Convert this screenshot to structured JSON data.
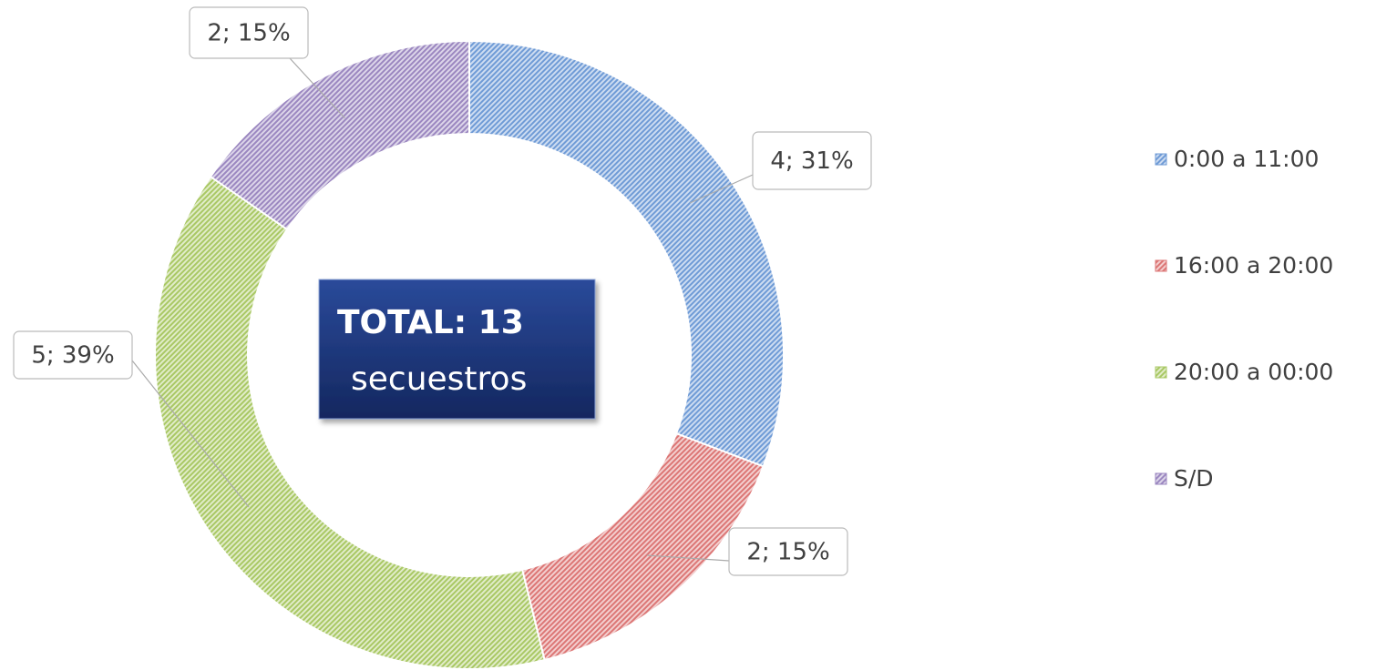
{
  "chart_data": {
    "type": "donut",
    "categories": [
      "0:00 a 11:00",
      "16:00 a 20:00",
      "20:00 a 00:00",
      "S/D"
    ],
    "values": [
      4,
      2,
      5,
      2
    ],
    "value_labels": [
      "4; 31%",
      "2; 15%",
      "5; 39%",
      "2; 15%"
    ],
    "colors": [
      "#6f9bd6",
      "#dc7675",
      "#a9c864",
      "#9b87c0"
    ],
    "annotations": [
      "TOTAL: 13",
      "secuestros"
    ],
    "legend": "right"
  }
}
